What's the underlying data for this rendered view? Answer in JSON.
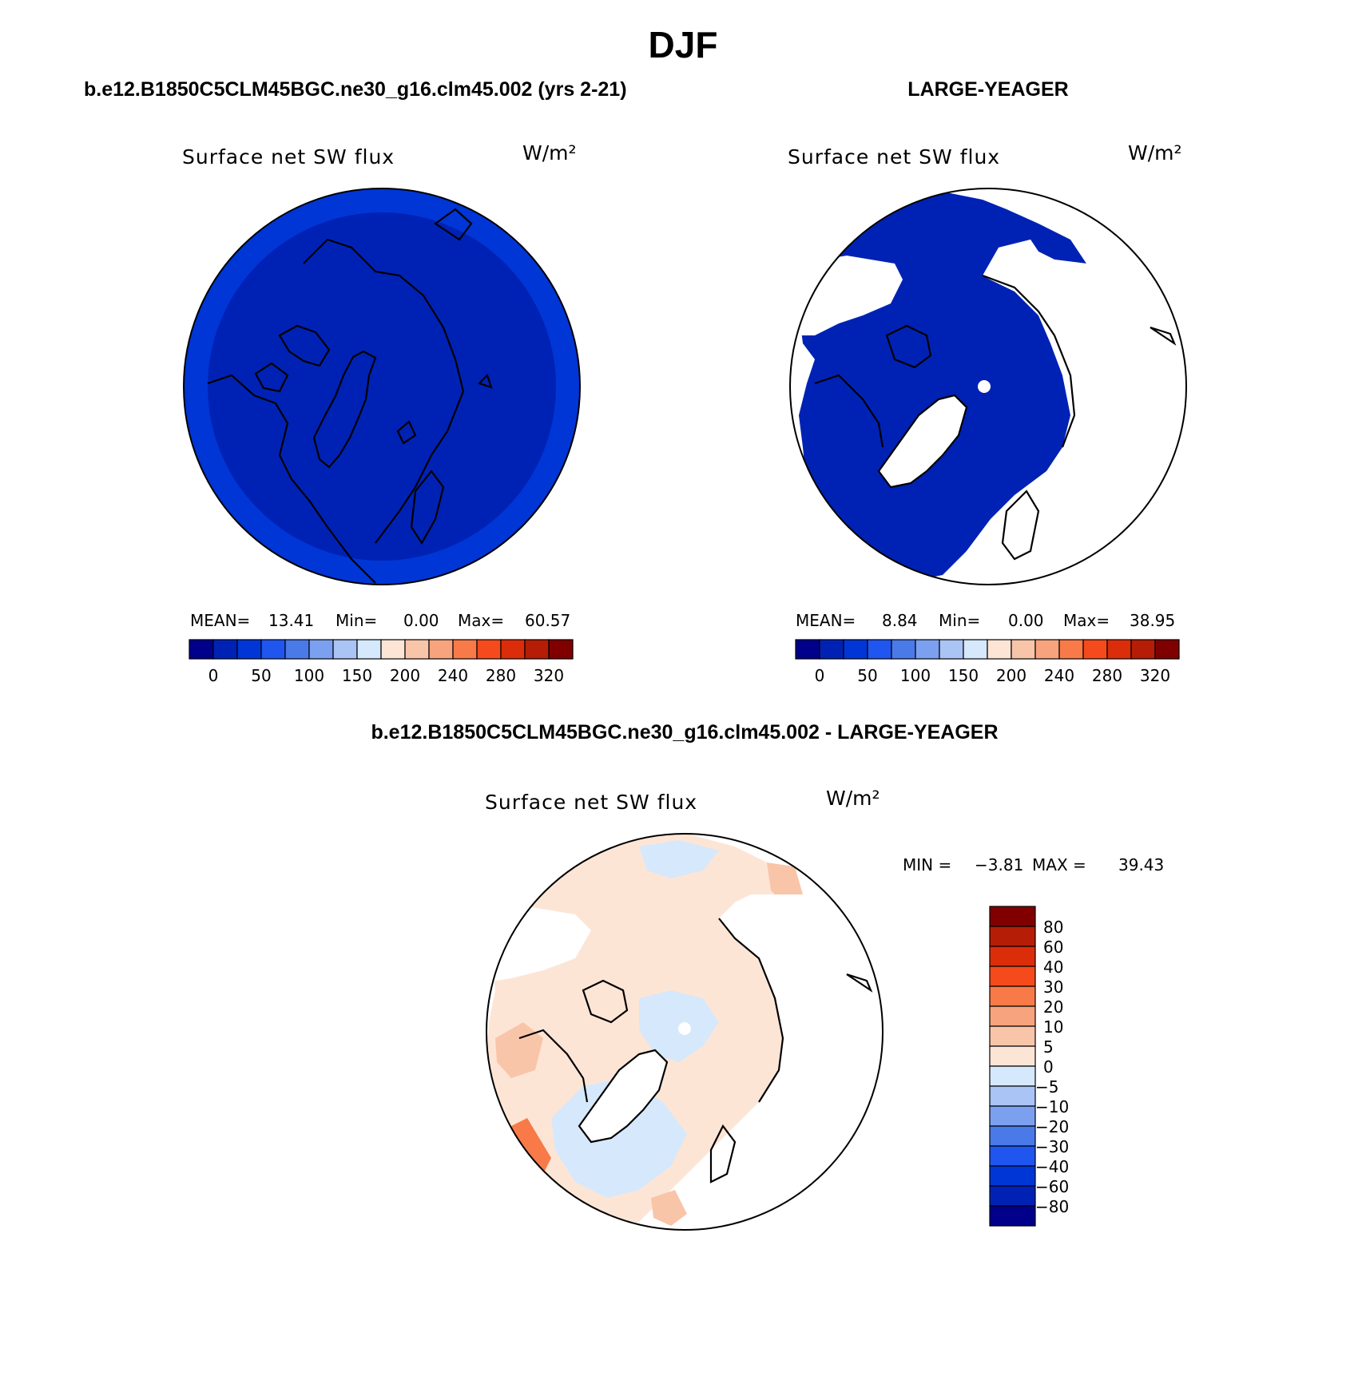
{
  "title": "DJF",
  "colors": {
    "scale": [
      "#00008b",
      "#0022b4",
      "#0036d6",
      "#1f56f0",
      "#4a7ae8",
      "#7ba0f0",
      "#a9c4f5",
      "#d6e8fb",
      "#fde5d6",
      "#f9c5a9",
      "#f7a37e",
      "#f77a48",
      "#f54a1c",
      "#dc2d0b",
      "#b51d07",
      "#800000"
    ],
    "land_fill": "#ffffff",
    "coast": "#000000"
  },
  "panels": {
    "model": {
      "header": "b.e12.B1850C5CLM45BGC.ne30_g16.clm45.002 (yrs 2-21)",
      "variable": "Surface net SW flux",
      "units": "W/m²",
      "dominant_level": 0,
      "stats": {
        "mean_label": "MEAN=",
        "mean": "13.41",
        "min_label": "Min=",
        "min": "0.00",
        "max_label": "Max=",
        "max": "60.57"
      },
      "colorbar_ticks": [
        "0",
        "50",
        "100",
        "150",
        "200",
        "240",
        "280",
        "320"
      ]
    },
    "obs": {
      "header": "LARGE-YEAGER",
      "variable": "Surface net SW flux",
      "units": "W/m²",
      "dominant_level": 1,
      "stats": {
        "mean_label": "MEAN=",
        "mean": "8.84",
        "min_label": "Min=",
        "min": "0.00",
        "max_label": "Max=",
        "max": "38.95"
      },
      "colorbar_ticks": [
        "0",
        "50",
        "100",
        "150",
        "200",
        "240",
        "280",
        "320"
      ]
    },
    "diff": {
      "header": "b.e12.B1850C5CLM45BGC.ne30_g16.clm45.002 - LARGE-YEAGER",
      "variable": "Surface net SW flux",
      "units": "W/m²",
      "minmax": {
        "min_label": "MIN =",
        "min": "−3.81",
        "max_label": "MAX =",
        "max": "39.43"
      },
      "colorbar_ticks": [
        "80",
        "60",
        "40",
        "30",
        "20",
        "10",
        "5",
        "0",
        "−5",
        "−10",
        "−20",
        "−30",
        "−40",
        "−60",
        "−80"
      ],
      "colorbar_colors": [
        "#800000",
        "#b51d07",
        "#dc2d0b",
        "#f54a1c",
        "#f77a48",
        "#f7a37e",
        "#f9c5a9",
        "#fde5d6",
        "#d6e8fb",
        "#a9c4f5",
        "#7ba0f0",
        "#4a7ae8",
        "#1f56f0",
        "#0036d6",
        "#0022b4",
        "#00008b"
      ]
    }
  }
}
